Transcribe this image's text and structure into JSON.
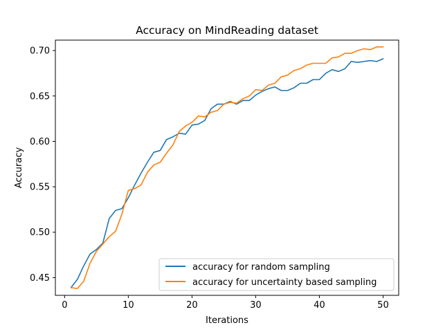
{
  "chart_data": {
    "type": "line",
    "title": "Accuracy on MindReading dataset",
    "xlabel": "Iterations",
    "ylabel": "Accuracy",
    "xlim": [
      -1.45,
      52.45
    ],
    "ylim": [
      0.4305,
      0.7115
    ],
    "xticks": [
      0,
      10,
      20,
      30,
      40,
      50
    ],
    "yticks": [
      0.45,
      0.5,
      0.55,
      0.6,
      0.65,
      0.7
    ],
    "ytick_labels": [
      "0.45",
      "0.50",
      "0.55",
      "0.60",
      "0.65",
      "0.70"
    ],
    "grid": false,
    "legend_position": "lower-right",
    "x": [
      1,
      2,
      3,
      4,
      5,
      6,
      7,
      8,
      9,
      10,
      11,
      12,
      13,
      14,
      15,
      16,
      17,
      18,
      19,
      20,
      21,
      22,
      23,
      24,
      25,
      26,
      27,
      28,
      29,
      30,
      31,
      32,
      33,
      34,
      35,
      36,
      37,
      38,
      39,
      40,
      41,
      42,
      43,
      44,
      45,
      46,
      47,
      48,
      49,
      50
    ],
    "series": [
      {
        "name": "accuracy for random sampling",
        "color": "#1f77b4",
        "values": [
          0.439,
          0.448,
          0.463,
          0.476,
          0.481,
          0.488,
          0.515,
          0.524,
          0.526,
          0.538,
          0.552,
          0.565,
          0.577,
          0.588,
          0.59,
          0.602,
          0.605,
          0.609,
          0.608,
          0.618,
          0.619,
          0.623,
          0.636,
          0.641,
          0.641,
          0.644,
          0.641,
          0.645,
          0.645,
          0.651,
          0.655,
          0.658,
          0.66,
          0.656,
          0.656,
          0.659,
          0.664,
          0.664,
          0.668,
          0.668,
          0.675,
          0.679,
          0.677,
          0.68,
          0.688,
          0.687,
          0.688,
          0.689,
          0.688,
          0.691
        ]
      },
      {
        "name": "accuracy for uncertainty based sampling",
        "color": "#ff7f0e",
        "values": [
          0.439,
          0.438,
          0.446,
          0.466,
          0.479,
          0.487,
          0.495,
          0.501,
          0.52,
          0.546,
          0.548,
          0.552,
          0.566,
          0.574,
          0.577,
          0.587,
          0.596,
          0.611,
          0.617,
          0.621,
          0.628,
          0.627,
          0.632,
          0.634,
          0.641,
          0.643,
          0.642,
          0.647,
          0.65,
          0.657,
          0.656,
          0.662,
          0.664,
          0.671,
          0.673,
          0.678,
          0.68,
          0.684,
          0.686,
          0.686,
          0.686,
          0.692,
          0.693,
          0.697,
          0.697,
          0.7,
          0.702,
          0.701,
          0.704,
          0.704
        ]
      }
    ]
  }
}
